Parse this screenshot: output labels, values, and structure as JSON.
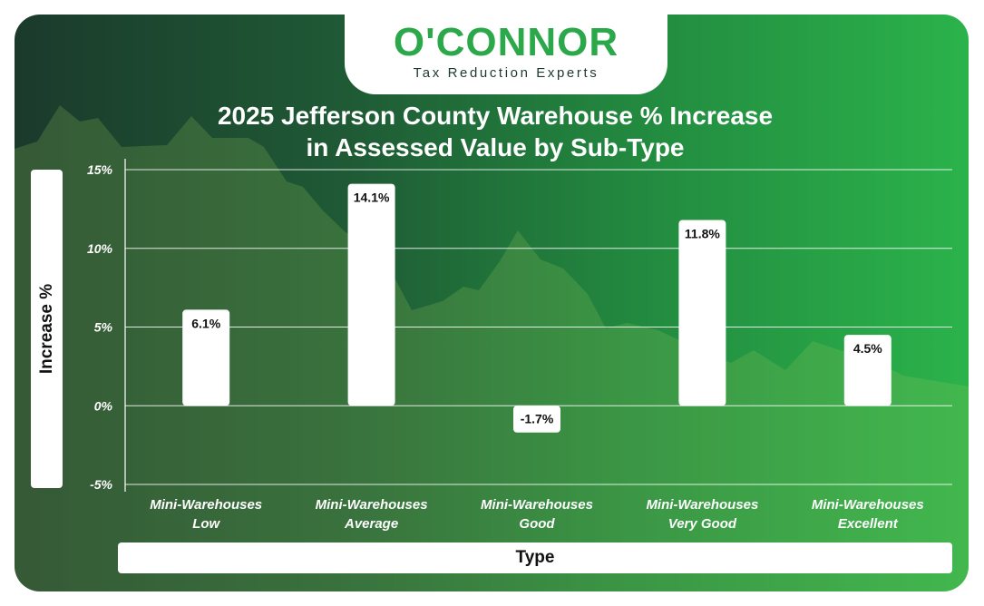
{
  "brand": {
    "name": "O'CONNOR",
    "tagline": "Tax Reduction Experts"
  },
  "colors": {
    "brand_green": "#2aa84a",
    "bar_fill": "#ffffff",
    "bg_dark": "#1b3a2c",
    "bg_light": "#2bb34b"
  },
  "chart_data": {
    "type": "bar",
    "title": [
      "2025 Jefferson County Warehouse % Increase",
      "in Assessed Value by Sub-Type"
    ],
    "xlabel": "Type",
    "ylabel": "Increase %",
    "categories": [
      [
        "Mini-Warehouses",
        "Low"
      ],
      [
        "Mini-Warehouses",
        "Average"
      ],
      [
        "Mini-Warehouses",
        "Good"
      ],
      [
        "Mini-Warehouses",
        "Very Good"
      ],
      [
        "Mini-Warehouses",
        "Excellent"
      ]
    ],
    "values": [
      6.1,
      14.1,
      -1.7,
      11.8,
      4.5
    ],
    "value_labels": [
      "6.1%",
      "14.1%",
      "-1.7%",
      "11.8%",
      "4.5%"
    ],
    "yticks": [
      15,
      10,
      5,
      0,
      -5
    ],
    "ytick_labels": [
      "15%",
      "10%",
      "5%",
      "0%",
      "-5%"
    ],
    "ylim": [
      -5,
      15
    ],
    "grid": true
  }
}
